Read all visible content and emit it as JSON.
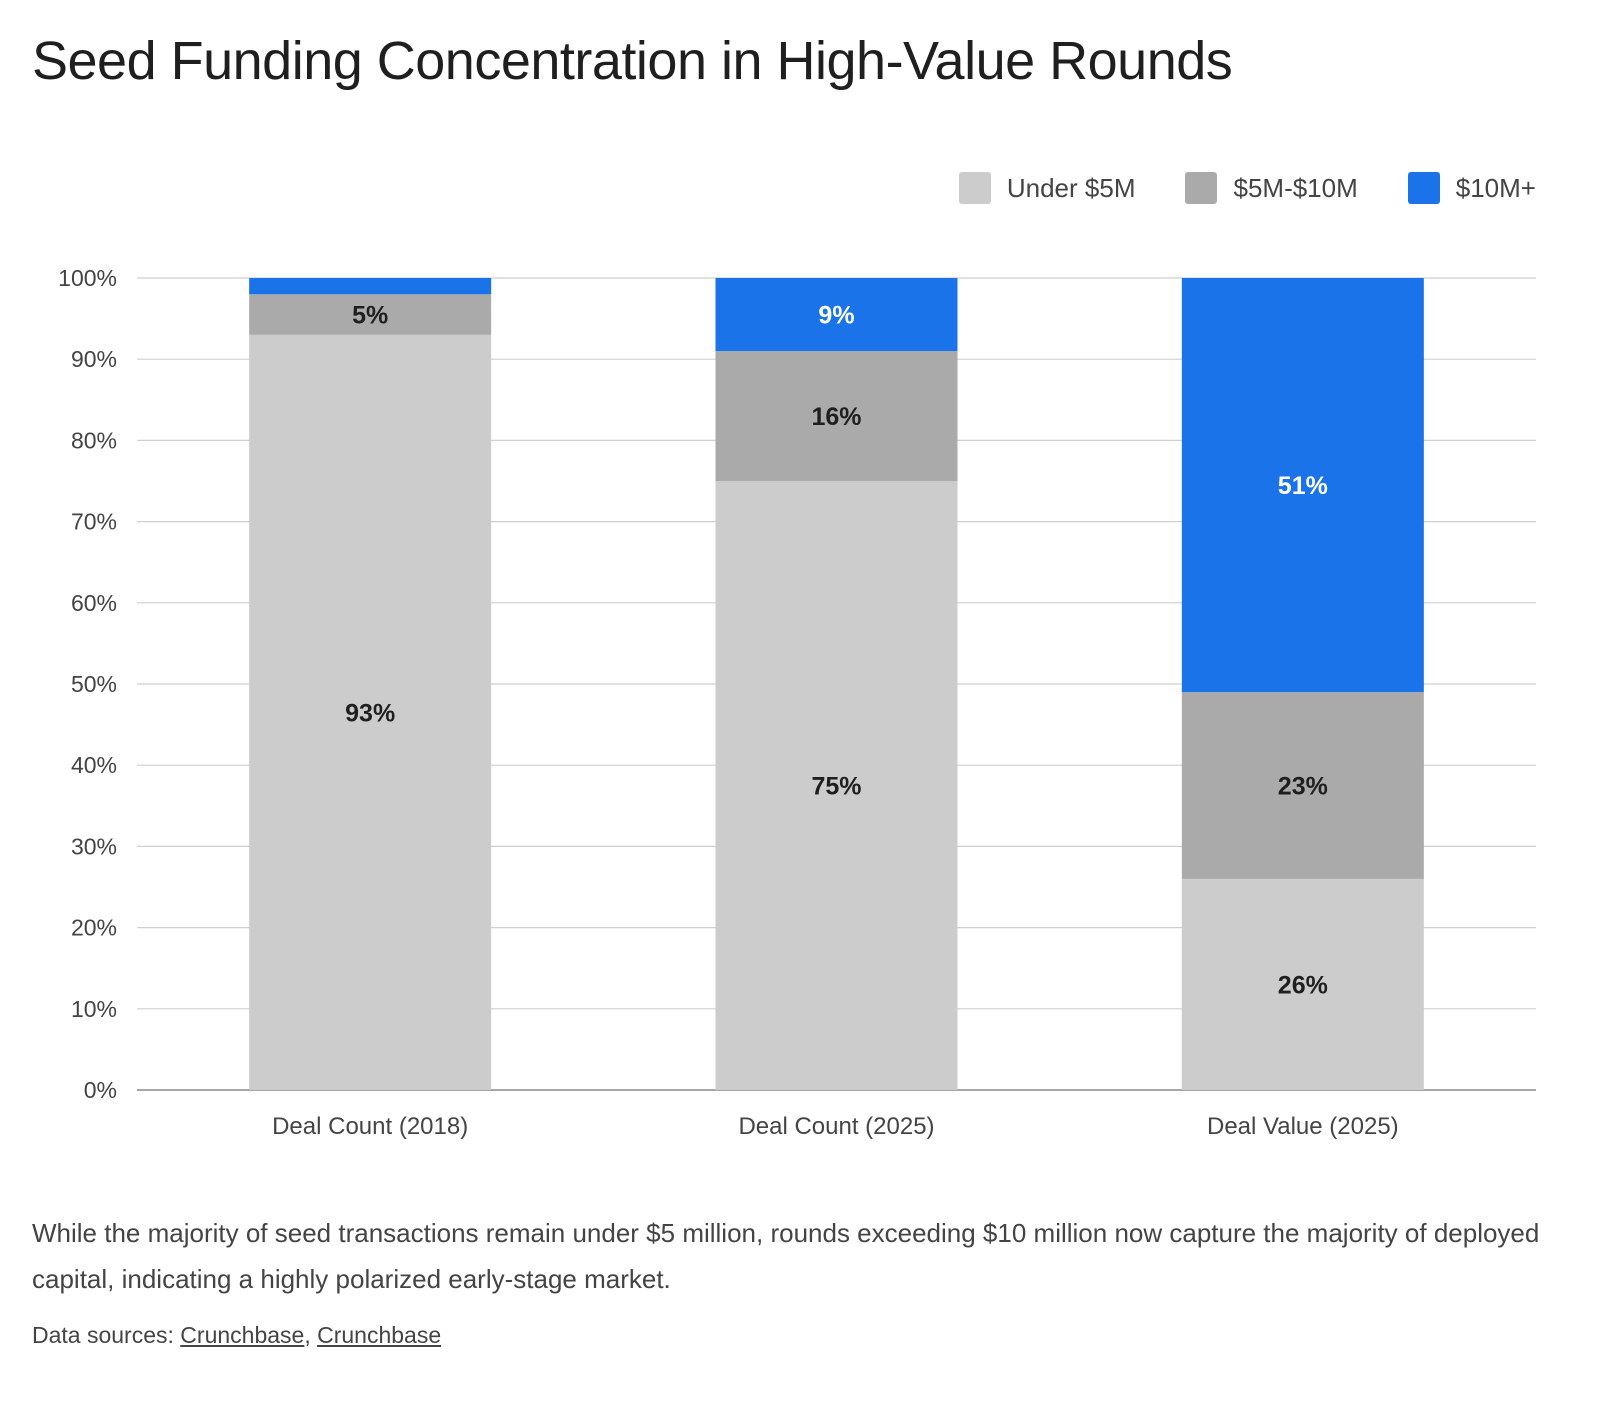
{
  "page": {
    "title": "Seed Funding Concentration in High-Value Rounds",
    "caption": "While the majority of seed transactions remain under $5 million, rounds exceeding $10 million now capture the majority of deployed capital, indicating a highly polarized early-stage market.",
    "sources_prefix": "Data sources: ",
    "sources": [
      "Crunchbase",
      "Crunchbase"
    ],
    "sources_separator": ", "
  },
  "chart_data": {
    "type": "bar",
    "stacked": true,
    "categories": [
      "Deal Count (2018)",
      "Deal Count (2025)",
      "Deal Value (2025)"
    ],
    "series": [
      {
        "name": "Under $5M",
        "values": [
          93,
          75,
          26
        ],
        "labels": [
          "93%",
          "75%",
          "26%"
        ],
        "color": "#cccccc",
        "label_color": "#1f1f1f"
      },
      {
        "name": "$5M-$10M",
        "values": [
          5,
          16,
          23
        ],
        "labels": [
          "5%",
          "16%",
          "23%"
        ],
        "color": "#aaaaaa",
        "label_color": "#1f1f1f"
      },
      {
        "name": "$10M+",
        "values": [
          2,
          9,
          51
        ],
        "labels": [
          "",
          "9%",
          "51%"
        ],
        "color": "#1a73e8",
        "label_color": "#ffffff"
      }
    ],
    "ylim": [
      0,
      100
    ],
    "yticks": [
      0,
      10,
      20,
      30,
      40,
      50,
      60,
      70,
      80,
      90,
      100
    ],
    "ytick_labels": [
      "0%",
      "10%",
      "20%",
      "30%",
      "40%",
      "50%",
      "60%",
      "70%",
      "80%",
      "90%",
      "100%"
    ],
    "grid": true,
    "legend_position": "top-right",
    "xlabel": "",
    "ylabel": ""
  }
}
